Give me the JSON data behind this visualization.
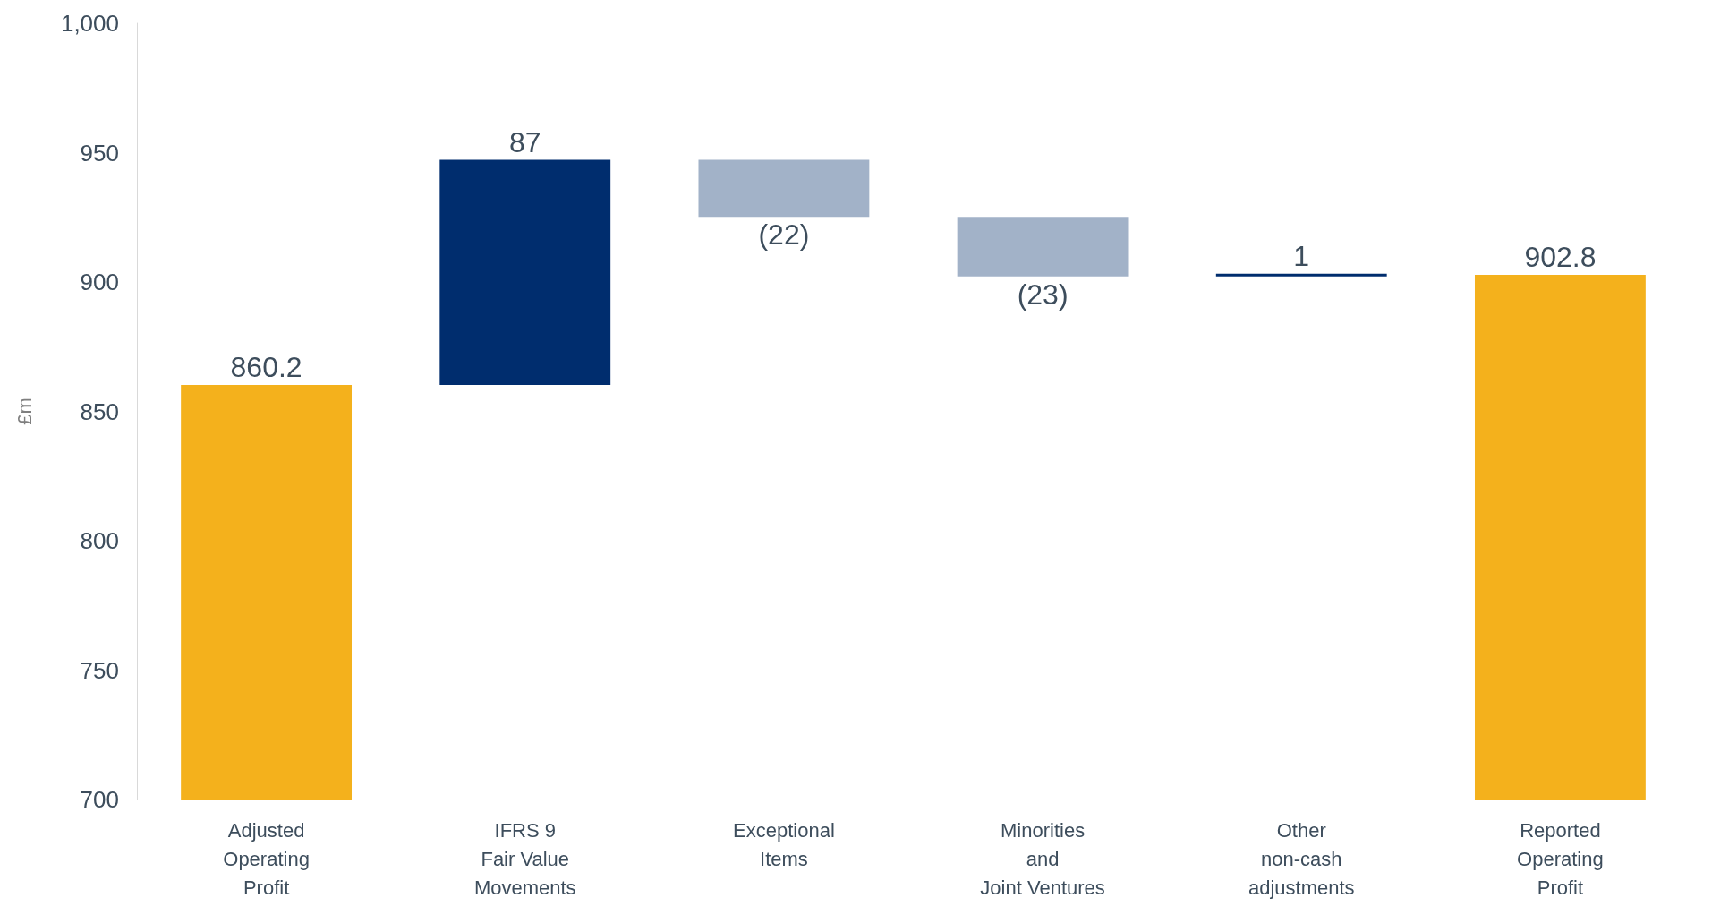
{
  "chart_data": {
    "type": "bar",
    "ylabel": "£m",
    "categories": [
      "Adjusted\nOperating\nProfit",
      "IFRS 9\nFair Value\nMovements",
      "Exceptional\nItems",
      "Minorities\nand\nJoint Ventures",
      "Other\nnon-cash\nadjustments",
      "Reported\nOperating\nProfit"
    ],
    "values": [
      860.2,
      87,
      -22,
      -23,
      1,
      902.8
    ],
    "base": [
      null,
      860.2,
      947.2,
      925.2,
      902.2,
      null
    ],
    "colors": [
      "#f4b11c",
      "#002d6e",
      "#a2b2c8",
      "#a2b2c8",
      "#002d6e",
      "#f4b11c"
    ],
    "value_labels": [
      "860.2",
      "87",
      "(22)",
      "(23)",
      "1",
      "902.8"
    ],
    "ylim": [
      700,
      1000
    ],
    "yticks": [
      700,
      750,
      800,
      850,
      900,
      950,
      {
        "value": 1000,
        "label": "1,000"
      }
    ],
    "grid": false
  }
}
